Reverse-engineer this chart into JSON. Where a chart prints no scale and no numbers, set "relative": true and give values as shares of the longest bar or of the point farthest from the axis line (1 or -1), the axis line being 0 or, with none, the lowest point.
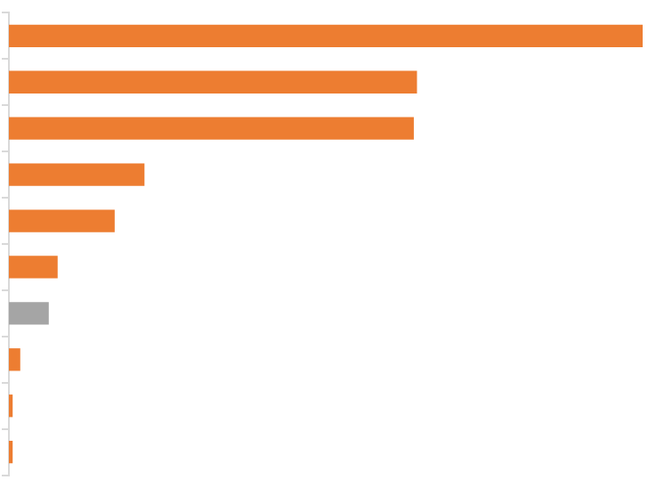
{
  "chart_data": {
    "type": "bar",
    "orientation": "horizontal",
    "relative": true,
    "categories": [
      null,
      null,
      null,
      null,
      null,
      null,
      null,
      null,
      null,
      null
    ],
    "values": [
      1,
      0.643,
      0.638,
      0.213,
      0.166,
      0.076,
      0.062,
      0.017,
      0.005,
      0.005
    ],
    "colors": [
      "#ed7d31",
      "#ed7d31",
      "#ed7d31",
      "#ed7d31",
      "#ed7d31",
      "#ed7d31",
      "#a5a5a5",
      "#ed7d31",
      "#ed7d31",
      "#ed7d31"
    ],
    "legend": false
  }
}
